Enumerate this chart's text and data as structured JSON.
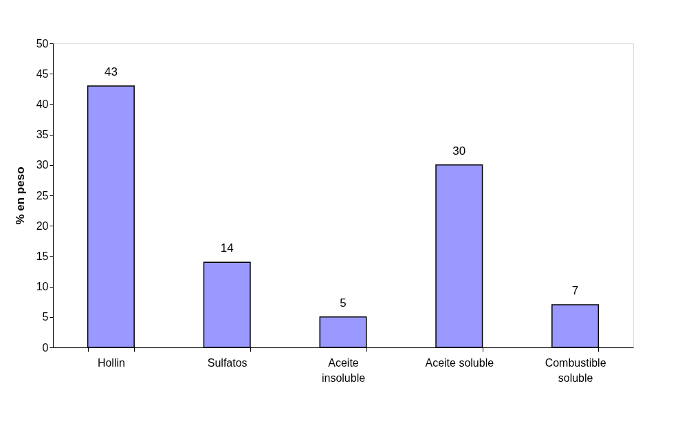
{
  "chart_data": {
    "type": "bar",
    "ylabel": "% en peso",
    "categories": [
      "Hollin",
      "Sulfatos",
      "Aceite insoluble",
      "Aceite soluble",
      "Combustible soluble"
    ],
    "values": [
      43,
      14,
      5,
      30,
      7
    ],
    "color": "#9999ff",
    "ylim": [
      0,
      50
    ],
    "yticks": [
      0,
      5,
      10,
      15,
      20,
      25,
      30,
      35,
      40,
      45,
      50
    ],
    "data_labels": true
  }
}
